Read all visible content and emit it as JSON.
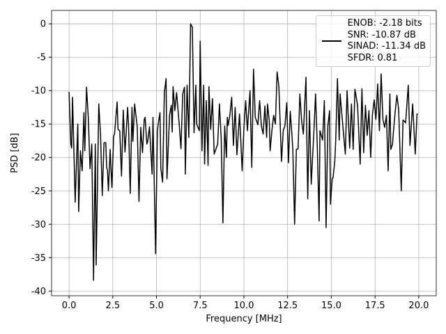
{
  "chart_data": {
    "type": "line",
    "xlabel": "Frequency [MHz]",
    "ylabel": "PSD [dB]",
    "x": [
      0.0,
      0.1,
      0.15,
      0.2,
      0.35,
      0.5,
      0.55,
      0.65,
      0.75,
      0.85,
      0.9,
      1.0,
      1.1,
      1.2,
      1.3,
      1.4,
      1.5,
      1.55,
      1.7,
      1.8,
      1.9,
      2.0,
      2.1,
      2.15,
      2.2,
      2.25,
      2.35,
      2.45,
      2.55,
      2.6,
      2.75,
      2.8,
      2.9,
      3.0,
      3.1,
      3.2,
      3.35,
      3.4,
      3.5,
      3.6,
      3.65,
      3.75,
      3.9,
      4.0,
      4.1,
      4.2,
      4.3,
      4.35,
      4.45,
      4.5,
      4.6,
      4.75,
      4.8,
      4.95,
      5.05,
      5.1,
      5.2,
      5.25,
      5.35,
      5.45,
      5.55,
      5.6,
      5.75,
      5.85,
      5.9,
      5.95,
      6.05,
      6.15,
      6.3,
      6.4,
      6.5,
      6.6,
      6.65,
      6.75,
      6.85,
      6.95,
      7.05,
      7.15,
      7.25,
      7.3,
      7.45,
      7.5,
      7.6,
      7.7,
      7.75,
      7.85,
      7.95,
      8.0,
      8.1,
      8.2,
      8.3,
      8.5,
      8.6,
      8.7,
      8.8,
      8.9,
      9.0,
      9.05,
      9.1,
      9.2,
      9.3,
      9.4,
      9.5,
      9.6,
      9.75,
      9.9,
      10.0,
      10.1,
      10.2,
      10.35,
      10.45,
      10.55,
      10.65,
      10.8,
      10.9,
      11.0,
      11.1,
      11.2,
      11.3,
      11.35,
      11.45,
      11.5,
      11.6,
      11.7,
      11.8,
      11.9,
      12.0,
      12.15,
      12.25,
      12.35,
      12.45,
      12.55,
      12.65,
      12.75,
      12.8,
      12.9,
      13.0,
      13.1,
      13.2,
      13.3,
      13.4,
      13.55,
      13.65,
      13.75,
      13.85,
      14.0,
      14.1,
      14.2,
      14.3,
      14.35,
      14.5,
      14.6,
      14.7,
      14.8,
      14.9,
      14.95,
      15.05,
      15.1,
      15.2,
      15.25,
      15.35,
      15.45,
      15.5,
      15.6,
      15.8,
      15.9,
      16.0,
      16.05,
      16.15,
      16.25,
      16.35,
      16.5,
      16.65,
      16.75,
      16.85,
      16.95,
      17.05,
      17.15,
      17.25,
      17.35,
      17.45,
      17.55,
      17.65,
      17.75,
      17.85,
      17.95,
      18.05,
      18.15,
      18.25,
      18.35,
      18.4,
      18.5,
      18.55,
      18.65,
      18.75,
      18.85,
      19.0,
      19.1,
      19.25,
      19.4,
      19.5,
      19.65,
      19.8,
      19.9,
      19.95
    ],
    "series": [
      {
        "name": "ENOB: -2.18 bits\nSNR: -10.87 dB\nSINAD: -11.34 dB\nSFDR: 0.81",
        "color": "#000000",
        "values": [
          -10.2,
          -18,
          -18.6,
          -11,
          -26.7,
          -15,
          -28.1,
          -19,
          -22,
          -13.3,
          -19,
          -9.5,
          -14,
          -21.7,
          -18,
          -38.4,
          -18,
          -36.1,
          -12,
          -16.5,
          -25.7,
          -17.8,
          -17.8,
          -21.5,
          -22,
          -25,
          -18.8,
          -24.5,
          -16.8,
          -16.5,
          -11.7,
          -15.8,
          -16,
          -22.8,
          -12.9,
          -19.2,
          -12.5,
          -15,
          -25.4,
          -12.5,
          -17.6,
          -12,
          -15.4,
          -26.6,
          -15.5,
          -19.3,
          -14.3,
          -14,
          -18,
          -17.6,
          -15.4,
          -22.5,
          -14,
          -34.4,
          -16,
          -15,
          -13.3,
          -21.6,
          -23.7,
          -10.3,
          -8.2,
          -23.2,
          -13.6,
          -12.2,
          -16.2,
          -9.4,
          -13,
          -10.3,
          -15,
          -18.7,
          -10.5,
          -9.5,
          -22.5,
          -9.2,
          -17,
          0,
          -0.5,
          -16.3,
          -9.2,
          -15,
          -16,
          -2.6,
          -19,
          -9.2,
          -21,
          -11.5,
          -21.2,
          -9.4,
          -15.8,
          -11.2,
          -19.5,
          -18,
          -12,
          -17,
          -29.8,
          -15.3,
          -20,
          -14,
          -15.2,
          -13.6,
          -11,
          -18.2,
          -12.5,
          -19.6,
          -13.5,
          -22,
          -15.6,
          -11.5,
          -16,
          -10,
          -21.5,
          -6.8,
          -14,
          -15.1,
          -11.5,
          -15.3,
          -16.5,
          -12.3,
          -17,
          -12,
          -14.5,
          -19,
          -16,
          -13.7,
          -15,
          -7.2,
          -9.4,
          -20.6,
          -16,
          -15.2,
          -11.8,
          -20.8,
          -13.1,
          -16.7,
          -19,
          -30,
          -18.8,
          -18.7,
          -10.5,
          -14.5,
          -16.5,
          -8,
          -26.2,
          -13,
          -24,
          -16.3,
          -10.5,
          -18.6,
          -29.5,
          -16,
          -17.4,
          -11.5,
          -30.5,
          -15.3,
          -13,
          -27,
          -23.2,
          -23,
          -20.5,
          -17.5,
          -8.2,
          -17.4,
          -10.5,
          -13.5,
          -19.5,
          -10,
          -15.8,
          -18.6,
          -12,
          -18.8,
          -9.8,
          -12.2,
          -21,
          -9.7,
          -19.3,
          -12.2,
          -16.7,
          -13,
          -20,
          -13.6,
          -11.4,
          -14.3,
          -9,
          -16,
          -7.5,
          -14.3,
          -15.5,
          -13.7,
          -22,
          -10.5,
          -18.8,
          -18,
          -16.2,
          -13.2,
          -10.7,
          -12.8,
          -25,
          -14.4,
          -14.8,
          -9.2,
          -18.2,
          -12,
          -19.5,
          -13.5,
          -13.5
        ]
      }
    ],
    "xlim": [
      -1,
      21
    ],
    "ylim": [
      -40.7,
      2
    ],
    "xticks": [
      {
        "value": 0,
        "label": "0.0"
      },
      2.5,
      {
        "value": 5,
        "label": "5.0"
      },
      7.5,
      {
        "value": 10,
        "label": "10.0"
      },
      12.5,
      {
        "value": 15,
        "label": "15.0"
      },
      17.5,
      {
        "value": 20,
        "label": "20.0"
      }
    ],
    "yticks": [
      0,
      -5,
      -10,
      -15,
      -20,
      -25,
      -30,
      -35,
      -40
    ],
    "grid": true,
    "legend": "upper right"
  }
}
